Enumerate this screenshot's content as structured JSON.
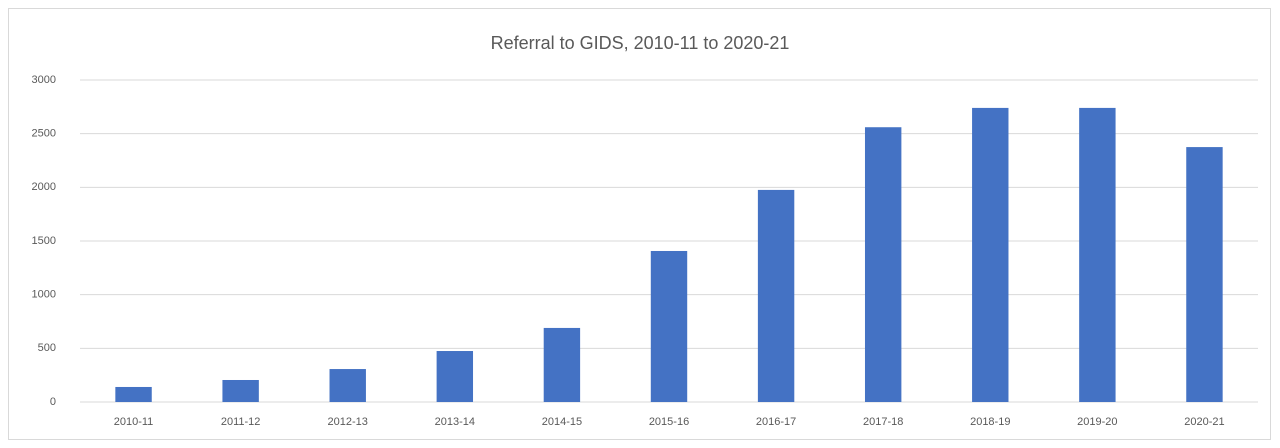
{
  "chart_data": {
    "type": "bar",
    "title": "Referral to GIDS, 2010-11 to 2020-21",
    "categories": [
      "2010-11",
      "2011-12",
      "2012-13",
      "2013-14",
      "2014-15",
      "2015-16",
      "2016-17",
      "2017-18",
      "2018-19",
      "2019-20",
      "2020-21"
    ],
    "values": [
      140,
      205,
      307,
      475,
      690,
      1407,
      1976,
      2560,
      2740,
      2740,
      2375
    ],
    "color": "#4472c4",
    "ylim": [
      0,
      3000
    ],
    "yticks": [
      0,
      500,
      1000,
      1500,
      2000,
      2500,
      3000
    ],
    "grid": true
  }
}
